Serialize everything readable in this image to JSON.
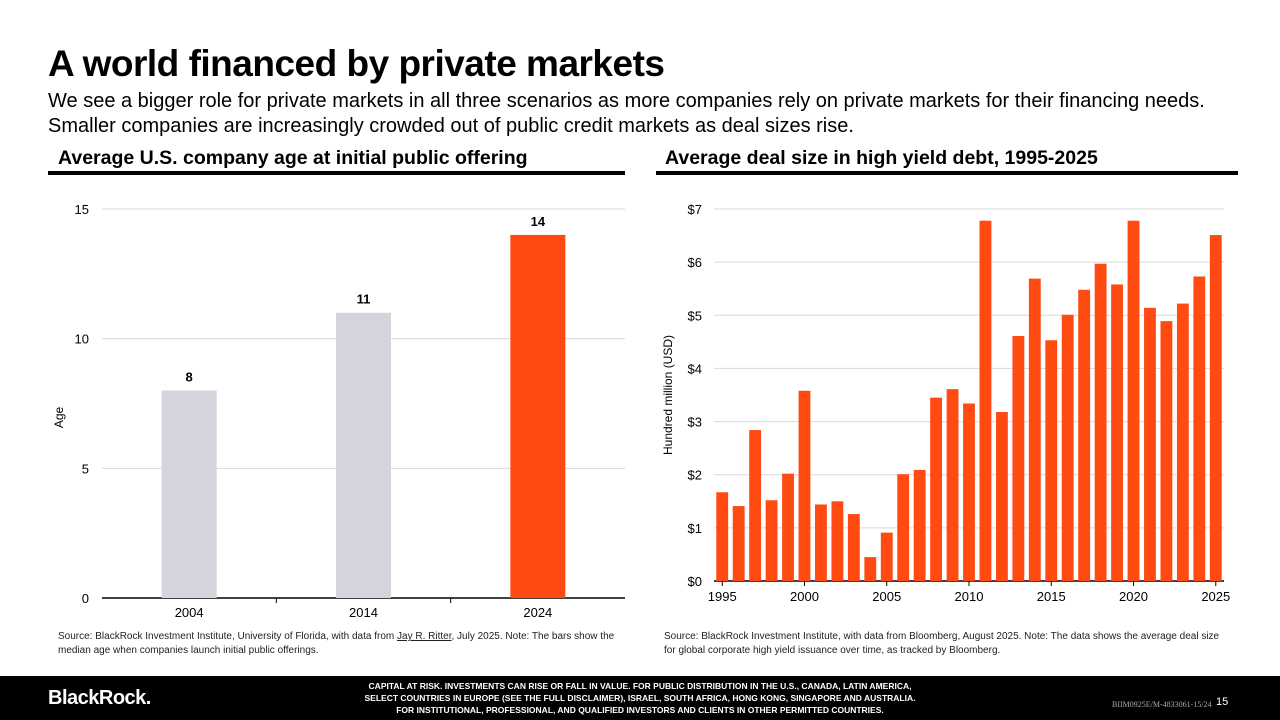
{
  "header": {
    "title": "A world financed by private markets",
    "subtitle": "We see a bigger role for private markets in all three scenarios as more companies rely on private markets for their financing needs. Smaller companies are increasingly crowded out of public credit markets as deal sizes rise."
  },
  "left_panel": {
    "title": "Average U.S. company age at initial public offering",
    "source_before": "Source: BlackRock Investment Institute, University of Florida, with data from ",
    "source_link": "Jay R. Ritter",
    "source_after": ", July 2025. Note: The bars show the median age when companies launch initial public offerings."
  },
  "right_panel": {
    "title": "Average deal size in high yield debt, 1995-2025",
    "source": "Source: BlackRock Investment Institute, with data from Bloomberg, August 2025. Note: The data shows the average deal size for global corporate high yield issuance over time, as tracked by Bloomberg."
  },
  "footer": {
    "logo": "BlackRock.",
    "disclaimer_1": "Capital at risk. Investments can rise or fall in value. For public distribution in the U.S., Canada, Latin America,",
    "disclaimer_2": "select countries in Europe (see the full disclaimer), Israel, South Africa, Hong Kong, Singapore and Australia.",
    "disclaimer_3": "For institutional, professional, and qualified investors and clients in other permitted countries.",
    "code": "BIIM0925E/M-4833061-15/24",
    "page": "15"
  },
  "colors": {
    "grey_bar": "#d4d4dc",
    "orange_bar": "#ff4a12",
    "grid": "#d9d9d9"
  },
  "chart_data": [
    {
      "type": "bar",
      "categories": [
        "2004",
        "2014",
        "2024"
      ],
      "values": [
        8,
        11,
        14
      ],
      "data_labels": [
        "8",
        "11",
        "14"
      ],
      "ylabel": "Age",
      "ylim": [
        0,
        15
      ],
      "yticks": [
        0,
        5,
        10,
        15
      ],
      "grid": true,
      "bar_colors": [
        "#d4d4dc",
        "#d4d4dc",
        "#ff4a12"
      ]
    },
    {
      "type": "bar",
      "x": [
        1995,
        1996,
        1997,
        1998,
        1999,
        2000,
        2001,
        2002,
        2003,
        2004,
        2005,
        2006,
        2007,
        2008,
        2009,
        2010,
        2011,
        2012,
        2013,
        2014,
        2015,
        2016,
        2017,
        2018,
        2019,
        2020,
        2021,
        2022,
        2023,
        2024,
        2025
      ],
      "values": [
        1.67,
        1.41,
        2.84,
        1.52,
        2.02,
        3.58,
        1.44,
        1.5,
        1.26,
        0.45,
        0.91,
        2.01,
        2.09,
        3.45,
        3.61,
        3.34,
        6.78,
        3.18,
        4.61,
        5.69,
        4.53,
        5.01,
        5.48,
        5.97,
        5.58,
        6.78,
        5.14,
        4.89,
        5.22,
        5.73,
        6.51
      ],
      "ylabel": "Hundred million (USD)",
      "ylim": [
        0,
        7
      ],
      "yticks": [
        0,
        1,
        2,
        3,
        4,
        5,
        6,
        7
      ],
      "ytick_labels": [
        "$0",
        "$1",
        "$2",
        "$3",
        "$4",
        "$5",
        "$6",
        "$7"
      ],
      "xticks": [
        "1995",
        "2000",
        "2005",
        "2010",
        "2015",
        "2020",
        "2025"
      ],
      "grid": true,
      "bar_color": "#ff4a12"
    }
  ]
}
